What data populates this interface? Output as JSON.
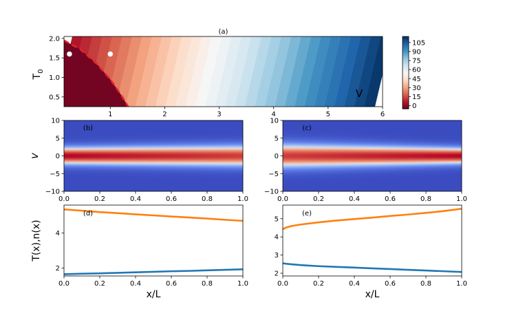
{
  "chart_data": [
    {
      "id": "a",
      "type": "heatmap",
      "panel_label": "(a)",
      "annotation": "V",
      "ylabel": "T",
      "ylabel_subscript": "0",
      "xlabel": "",
      "xlim": [
        0.15,
        6.0
      ],
      "ylim": [
        0.25,
        2.05
      ],
      "xticks": [
        1,
        2,
        3,
        4,
        5,
        6
      ],
      "yticks": [
        0.5,
        1.0,
        1.5,
        2.0
      ],
      "ytick_labels": [
        "0.5",
        "1.0",
        "1.5",
        "2.0"
      ],
      "colormap": "RdBu",
      "colorbar": {
        "range": [
          -5,
          115
        ],
        "ticks": [
          0,
          15,
          30,
          45,
          60,
          75,
          90,
          105
        ],
        "labels": [
          "0",
          "15",
          "30",
          "45",
          "60",
          "75",
          "90",
          "105"
        ]
      },
      "boundary_curve": {
        "style": "red-dashed",
        "x": [
          0.15,
          0.45,
          0.75,
          1.0,
          1.2,
          1.33
        ],
        "y": [
          1.95,
          1.72,
          1.35,
          0.95,
          0.55,
          0.25
        ]
      },
      "markers": {
        "color": "#ffffff",
        "points": [
          [
            0.25,
            1.6
          ],
          [
            1.0,
            1.6
          ]
        ]
      }
    },
    {
      "id": "b",
      "type": "heatmap",
      "panel_label": "(b)",
      "ylabel": "v",
      "xlabel": "",
      "xlim": [
        0,
        1
      ],
      "ylim": [
        -10,
        10
      ],
      "xticks": [
        0.0,
        0.2,
        0.4,
        0.6,
        0.8,
        1.0
      ],
      "xtick_labels": [
        "0.0",
        "0.2",
        "0.4",
        "0.6",
        "0.8",
        "1.0"
      ],
      "yticks": [
        -10,
        -5,
        0,
        5,
        10
      ],
      "ytick_labels": [
        "−10",
        "−5",
        "0",
        "5",
        "10"
      ],
      "colormap": "coolwarm",
      "band_width_left": 1.65,
      "band_width_right": 2.0,
      "peak_at": "left"
    },
    {
      "id": "c",
      "type": "heatmap",
      "panel_label": "(c)",
      "ylabel": "",
      "xlabel": "",
      "xlim": [
        0,
        1
      ],
      "ylim": [
        -10,
        10
      ],
      "xticks": [
        0.0,
        0.2,
        0.4,
        0.6,
        0.8,
        1.0
      ],
      "xtick_labels": [
        "0.0",
        "0.2",
        "0.4",
        "0.6",
        "0.8",
        "1.0"
      ],
      "yticks": [
        -10,
        -5,
        0,
        5,
        10
      ],
      "ytick_labels": [
        "−10",
        "−5",
        "0",
        "5",
        "10"
      ],
      "colormap": "coolwarm",
      "band_width_left": 2.3,
      "band_width_right": 1.55,
      "peak_at": "right"
    },
    {
      "id": "d",
      "type": "line",
      "panel_label": "(d)",
      "ylabel": "T(x),n(x)",
      "xlabel": "x/L",
      "xlim": [
        0,
        1
      ],
      "ylim": [
        1.55,
        5.6
      ],
      "xticks": [
        0.0,
        0.2,
        0.4,
        0.6,
        0.8,
        1.0
      ],
      "xtick_labels": [
        "0.0",
        "0.2",
        "0.4",
        "0.6",
        "0.8",
        "1.0"
      ],
      "yticks": [
        2,
        4
      ],
      "ytick_labels": [
        "2",
        "4"
      ],
      "series": [
        {
          "color": "#ff7f0e",
          "x": [
            0.0,
            0.1,
            0.2,
            0.3,
            0.4,
            0.5,
            0.6,
            0.7,
            0.8,
            0.9,
            1.0
          ],
          "y": [
            5.35,
            5.28,
            5.2,
            5.14,
            5.07,
            5.01,
            4.95,
            4.89,
            4.83,
            4.76,
            4.7
          ]
        },
        {
          "color": "#1f77b4",
          "x": [
            0.0,
            0.1,
            0.2,
            0.3,
            0.4,
            0.5,
            0.6,
            0.7,
            0.8,
            0.9,
            1.0
          ],
          "y": [
            1.65,
            1.68,
            1.7,
            1.73,
            1.76,
            1.79,
            1.82,
            1.84,
            1.87,
            1.9,
            1.93
          ]
        }
      ]
    },
    {
      "id": "e",
      "type": "line",
      "panel_label": "(e)",
      "ylabel": "",
      "xlabel": "x/L",
      "xlim": [
        0,
        1
      ],
      "ylim": [
        1.85,
        5.75
      ],
      "xticks": [
        0.0,
        0.2,
        0.4,
        0.6,
        0.8,
        1.0
      ],
      "xtick_labels": [
        "0.0",
        "0.2",
        "0.4",
        "0.6",
        "0.8",
        "1.0"
      ],
      "yticks": [
        2,
        3,
        4,
        5
      ],
      "ytick_labels": [
        "2",
        "3",
        "4",
        "5"
      ],
      "series": [
        {
          "color": "#ff7f0e",
          "x": [
            0.0,
            0.02,
            0.05,
            0.1,
            0.2,
            0.3,
            0.4,
            0.5,
            0.6,
            0.7,
            0.8,
            0.9,
            1.0
          ],
          "y": [
            4.42,
            4.52,
            4.6,
            4.68,
            4.8,
            4.9,
            4.98,
            5.06,
            5.15,
            5.23,
            5.32,
            5.42,
            5.55
          ]
        },
        {
          "color": "#1f77b4",
          "x": [
            0.0,
            0.02,
            0.05,
            0.1,
            0.2,
            0.3,
            0.4,
            0.5,
            0.6,
            0.7,
            0.8,
            0.9,
            1.0
          ],
          "y": [
            2.55,
            2.52,
            2.49,
            2.45,
            2.39,
            2.35,
            2.31,
            2.27,
            2.23,
            2.19,
            2.15,
            2.11,
            2.07
          ]
        }
      ]
    }
  ]
}
